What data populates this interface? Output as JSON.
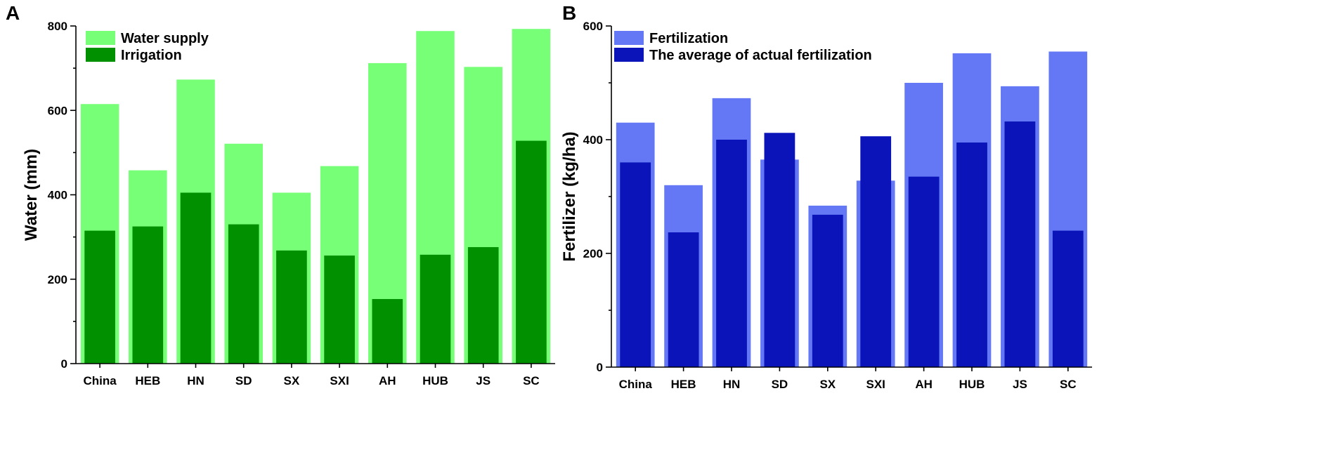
{
  "chart_data": [
    {
      "type": "bar",
      "panel_label": "A",
      "ylabel": "Water (mm)",
      "xlabel": "",
      "ylim": [
        0,
        800
      ],
      "yticks": [
        0,
        200,
        400,
        600,
        800
      ],
      "categories": [
        "China",
        "HEB",
        "HN",
        "SD",
        "SX",
        "SXI",
        "AH",
        "HUB",
        "JS",
        "SC"
      ],
      "series": [
        {
          "name": "Water supply",
          "color": "#77ff77",
          "values": [
            615,
            458,
            673,
            521,
            405,
            468,
            712,
            788,
            703,
            793
          ]
        },
        {
          "name": "Irrigation",
          "color": "#009000",
          "values": [
            315,
            325,
            405,
            330,
            268,
            256,
            153,
            258,
            276,
            528
          ]
        }
      ],
      "legend_position": "top-left"
    },
    {
      "type": "bar",
      "panel_label": "B",
      "ylabel": "Fertilizer (kg/ha)",
      "xlabel": "",
      "ylim": [
        0,
        600
      ],
      "yticks": [
        0,
        200,
        400,
        600
      ],
      "categories": [
        "China",
        "HEB",
        "HN",
        "SD",
        "SX",
        "SXI",
        "AH",
        "HUB",
        "JS",
        "SC"
      ],
      "series": [
        {
          "name": "Fertilization",
          "color": "#6478f5",
          "values": [
            430,
            320,
            473,
            365,
            284,
            328,
            500,
            552,
            494,
            555
          ]
        },
        {
          "name": "The average of actual fertilization",
          "color": "#0a14b8",
          "values": [
            360,
            237,
            400,
            412,
            268,
            406,
            335,
            395,
            432,
            240
          ]
        }
      ],
      "legend_position": "top-left"
    }
  ]
}
